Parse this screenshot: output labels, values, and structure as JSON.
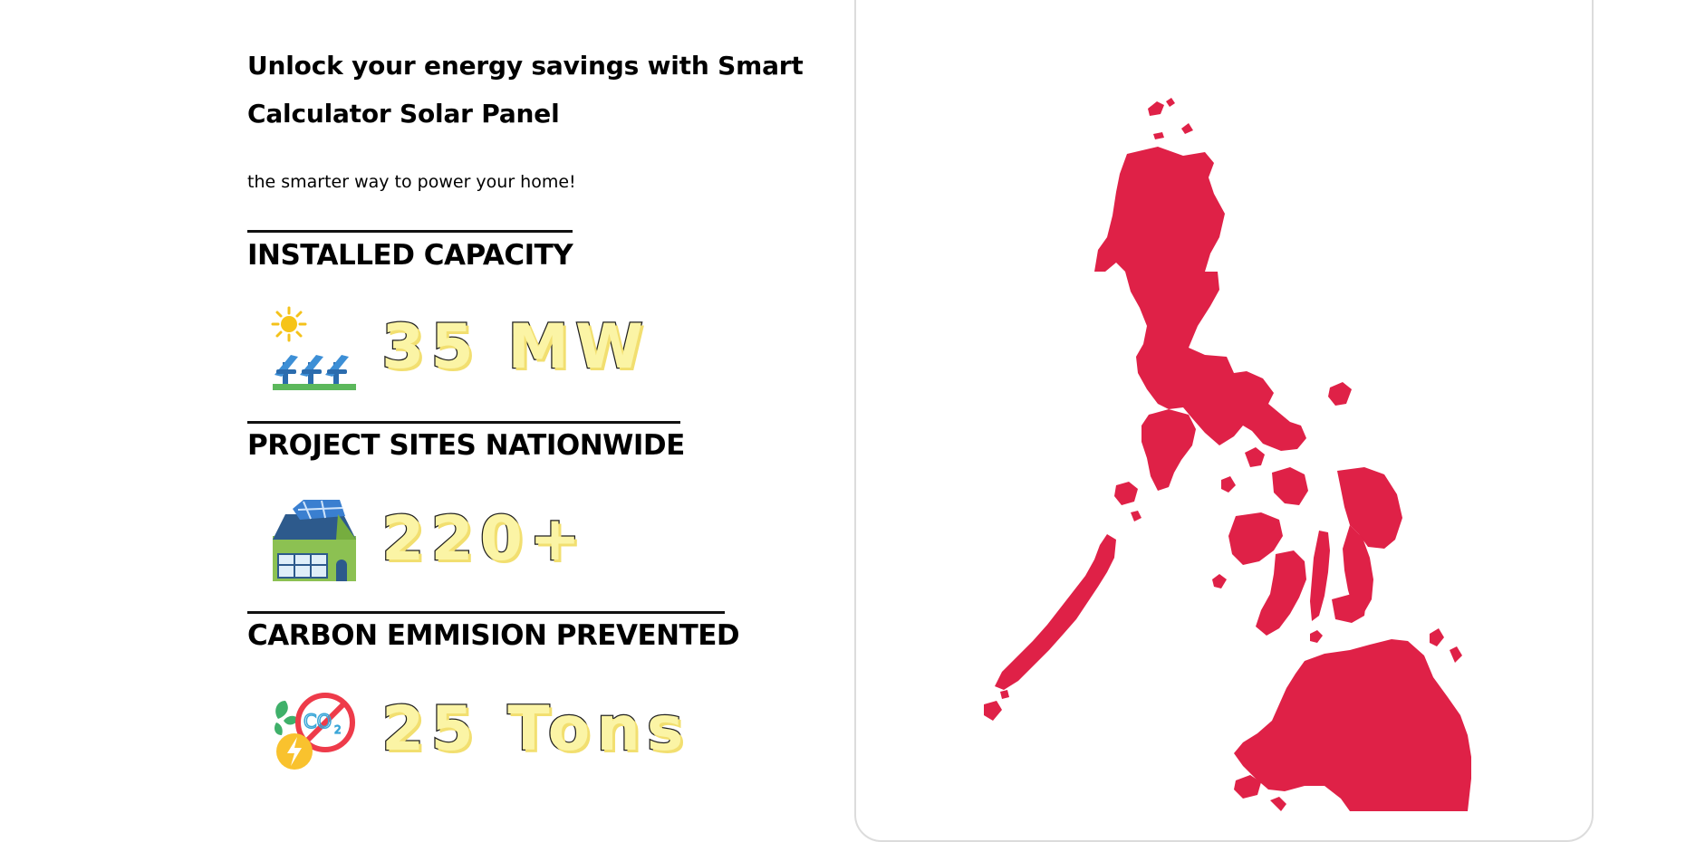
{
  "intro": {
    "headline": "Unlock your energy savings with Smart Calculator Solar Panel",
    "tagline": "the smarter way to power your home!"
  },
  "stats": [
    {
      "title": "INSTALLED CAPACITY",
      "value": "35 MW",
      "icon": "solar-farm-icon"
    },
    {
      "title": "PROJECT SITES NATIONWIDE",
      "value": "220+",
      "icon": "solar-house-icon"
    },
    {
      "title": "CARBON EMMISION PREVENTED",
      "value": "25 Tons",
      "icon": "no-co2-icon"
    }
  ],
  "map": {
    "name": "philippines-map",
    "color": "#df2147"
  }
}
